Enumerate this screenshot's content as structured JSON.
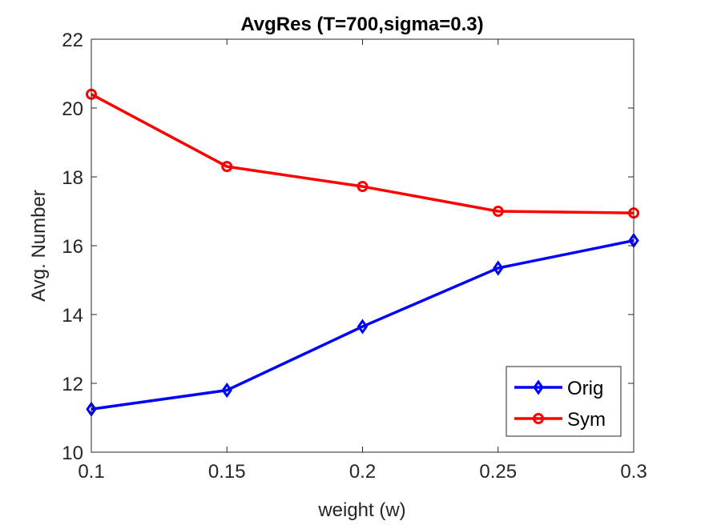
{
  "chart_data": {
    "type": "line",
    "title": "AvgRes (T=700,sigma=0.3)",
    "xlabel": "weight (w)",
    "ylabel": "Avg. Number",
    "x": [
      0.1,
      0.15,
      0.2,
      0.25,
      0.3
    ],
    "xlim": [
      0.1,
      0.3
    ],
    "ylim": [
      10,
      22
    ],
    "xticks": [
      "0.1",
      "0.15",
      "0.2",
      "0.25",
      "0.3"
    ],
    "yticks": [
      "10",
      "12",
      "14",
      "16",
      "18",
      "20",
      "22"
    ],
    "grid": false,
    "legend_position": "bottom-right",
    "series": [
      {
        "name": "Orig",
        "color": "#0000ff",
        "marker": "diamond",
        "values": [
          11.25,
          11.8,
          13.65,
          15.35,
          16.15
        ]
      },
      {
        "name": "Sym",
        "color": "#ff0000",
        "marker": "circle",
        "values": [
          20.4,
          18.3,
          17.72,
          17.0,
          16.95
        ]
      }
    ]
  }
}
